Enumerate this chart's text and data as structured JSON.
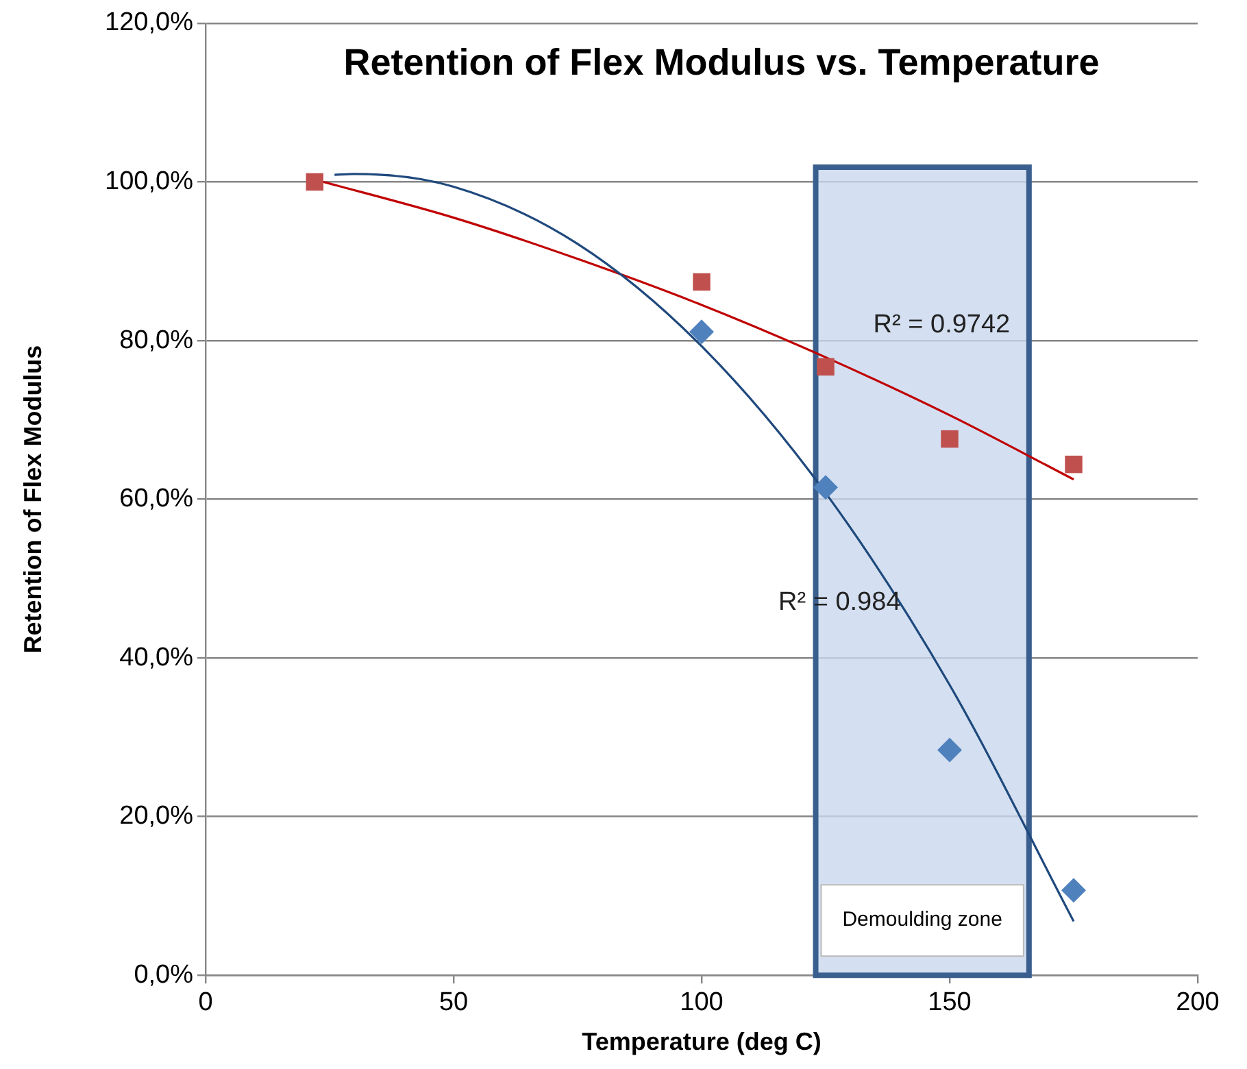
{
  "chart_data": {
    "type": "scatter",
    "title": "Retention of Flex Modulus vs. Temperature",
    "xlabel": "Temperature (deg C)",
    "ylabel": "Retention of Flex Modulus",
    "xlim": [
      0,
      200
    ],
    "xticks": [
      0,
      50,
      100,
      150,
      200
    ],
    "ylim": [
      0,
      120
    ],
    "yticks": [
      {
        "value": 0,
        "label": "0,0%"
      },
      {
        "value": 20,
        "label": "20,0%"
      },
      {
        "value": 40,
        "label": "40,0%"
      },
      {
        "value": 60,
        "label": "60,0%"
      },
      {
        "value": 80,
        "label": "80,0%"
      },
      {
        "value": 100,
        "label": "100,0%"
      },
      {
        "value": 120,
        "label": "120,0%"
      }
    ],
    "grid": "y",
    "legend": false,
    "series": [
      {
        "marker": "diamond",
        "color": "#4f81bd",
        "x": [
          100,
          125,
          150,
          175
        ],
        "values": [
          81.1,
          61.5,
          28.4,
          10.7
        ]
      },
      {
        "marker": "square",
        "color": "#c0504d",
        "x": [
          22,
          100,
          125,
          150,
          175
        ],
        "values": [
          100,
          87.4,
          76.7,
          67.6,
          64.4
        ]
      },
      {
        "type": "line",
        "marker": "none",
        "line_style": "solid",
        "color": "#1f497d",
        "x": [
          26,
          30,
          50,
          75,
          100,
          125,
          150,
          175
        ],
        "values": [
          100.9,
          101.0,
          99.4,
          92.2,
          79.3,
          60.8,
          36.6,
          6.8
        ]
      },
      {
        "type": "line",
        "marker": "none",
        "line_style": "solid",
        "color": "#c00000",
        "x": [
          22,
          50,
          75,
          100,
          125,
          150,
          175
        ],
        "values": [
          100.3,
          95.5,
          90.3,
          84.5,
          77.9,
          70.6,
          62.5
        ]
      }
    ],
    "bands": [
      {
        "axis": "x",
        "from": 123,
        "to": 166,
        "label": "Demoulding zone",
        "color": "#c9d8ee"
      }
    ],
    "annotations": [
      "R² = 0.9742",
      "R² = 0.984"
    ]
  }
}
